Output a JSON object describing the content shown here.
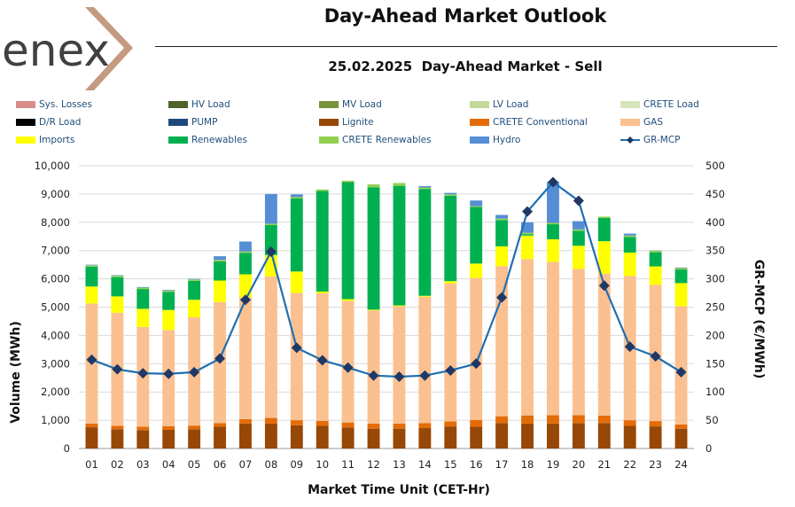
{
  "brand": {
    "name": "enex",
    "color": "#404040",
    "accent": "#c49a80"
  },
  "header": {
    "title": "Day-Ahead Market Outlook",
    "subtitle": "25.02.2025  Day-Ahead Market - Sell"
  },
  "legend": [
    {
      "label": "Sys. Losses",
      "color": "#d98c8c",
      "kind": "box"
    },
    {
      "label": "HV Load",
      "color": "#4f6228",
      "kind": "box"
    },
    {
      "label": "MV Load",
      "color": "#77933c",
      "kind": "box"
    },
    {
      "label": "LV Load",
      "color": "#c4d79b",
      "kind": "box"
    },
    {
      "label": "CRETE Load",
      "color": "#d8e4bc",
      "kind": "box"
    },
    {
      "label": "D/R Load",
      "color": "#000000",
      "kind": "box"
    },
    {
      "label": "PUMP",
      "color": "#1f497d",
      "kind": "box"
    },
    {
      "label": "Lignite",
      "color": "#974706",
      "kind": "box"
    },
    {
      "label": "CRETE Conventional",
      "color": "#e36c09",
      "kind": "box"
    },
    {
      "label": "GAS",
      "color": "#fac090",
      "kind": "box"
    },
    {
      "label": "Imports",
      "color": "#ffff00",
      "kind": "box"
    },
    {
      "label": "Renewables",
      "color": "#00b050",
      "kind": "box"
    },
    {
      "label": "CRETE Renewables",
      "color": "#92d050",
      "kind": "box"
    },
    {
      "label": "Hydro",
      "color": "#558ed5",
      "kind": "box"
    },
    {
      "label": "GR-MCP",
      "color": "#1f6fb2",
      "kind": "line"
    }
  ],
  "chart_data": {
    "type": "bar",
    "title": "25.02.2025  Day-Ahead Market - Sell",
    "xlabel": "Market Time Unit (CET-Hr)",
    "ylabel": "Volume (MWh)",
    "y2label": "GR-MCP (€/MWh)",
    "ylim": [
      0,
      10000
    ],
    "y2lim": [
      0,
      500
    ],
    "yticks": [
      "0",
      "1,000",
      "2,000",
      "3,000",
      "4,000",
      "5,000",
      "6,000",
      "7,000",
      "8,000",
      "9,000",
      "10,000"
    ],
    "y2ticks": [
      "0",
      "50",
      "100",
      "150",
      "200",
      "250",
      "300",
      "350",
      "400",
      "450",
      "500"
    ],
    "grid": true,
    "stacked": true,
    "categories": [
      "01",
      "02",
      "03",
      "04",
      "05",
      "06",
      "07",
      "08",
      "09",
      "10",
      "11",
      "12",
      "13",
      "14",
      "15",
      "16",
      "17",
      "18",
      "19",
      "20",
      "21",
      "22",
      "23",
      "24"
    ],
    "series": [
      {
        "name": "Lignite",
        "color": "#974706",
        "values": [
          750,
          680,
          650,
          660,
          680,
          770,
          880,
          880,
          820,
          800,
          740,
          700,
          700,
          720,
          780,
          770,
          900,
          880,
          880,
          900,
          900,
          800,
          780,
          700
        ]
      },
      {
        "name": "CRETE Conventional",
        "color": "#e36c09",
        "values": [
          130,
          120,
          120,
          130,
          130,
          130,
          160,
          200,
          180,
          180,
          180,
          180,
          180,
          180,
          180,
          240,
          240,
          290,
          300,
          280,
          260,
          200,
          190,
          150
        ]
      },
      {
        "name": "GAS",
        "color": "#fac090",
        "values": [
          4250,
          4000,
          3530,
          3400,
          3830,
          4280,
          4310,
          5000,
          4500,
          4510,
          4300,
          4000,
          4150,
          4470,
          4870,
          5020,
          5310,
          5530,
          5420,
          5170,
          5020,
          5100,
          4820,
          4180
        ]
      },
      {
        "name": "Imports",
        "color": "#ffff00",
        "values": [
          600,
          580,
          640,
          710,
          620,
          760,
          810,
          760,
          760,
          60,
          60,
          30,
          30,
          30,
          90,
          510,
          700,
          830,
          800,
          820,
          1150,
          830,
          650,
          820
        ]
      },
      {
        "name": "Renewables",
        "color": "#00b050",
        "values": [
          700,
          680,
          700,
          640,
          670,
          680,
          760,
          1060,
          2580,
          3560,
          4140,
          4330,
          4230,
          3780,
          3020,
          2000,
          930,
          50,
          530,
          530,
          820,
          550,
          500,
          480
        ]
      },
      {
        "name": "CRETE Renewables",
        "color": "#92d050",
        "values": [
          50,
          50,
          50,
          50,
          50,
          50,
          50,
          50,
          50,
          50,
          50,
          100,
          100,
          50,
          50,
          30,
          50,
          50,
          50,
          50,
          50,
          50,
          50,
          50
        ]
      },
      {
        "name": "Hydro",
        "color": "#558ed5",
        "values": [
          20,
          20,
          20,
          20,
          20,
          130,
          350,
          1050,
          100,
          0,
          0,
          0,
          0,
          50,
          50,
          200,
          130,
          370,
          1450,
          290,
          0,
          70,
          10,
          20
        ]
      }
    ],
    "line": {
      "name": "GR-MCP",
      "color": "#1f6fb2",
      "axis": "secondary",
      "values": [
        157,
        140,
        133,
        132,
        135,
        159,
        263,
        348,
        178,
        156,
        143,
        129,
        127,
        129,
        138,
        150,
        267,
        419,
        471,
        438,
        288,
        180,
        163,
        135
      ]
    }
  }
}
